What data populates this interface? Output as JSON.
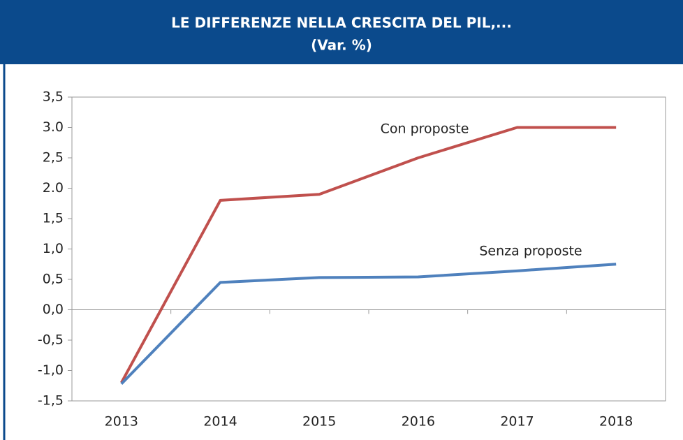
{
  "chart_data": {
    "type": "line",
    "title": "LE DIFFERENZE NELLA CRESCITA DEL PIL,...",
    "subtitle": "(Var. %)",
    "categories": [
      "2013",
      "2014",
      "2015",
      "2016",
      "2017",
      "2018"
    ],
    "series": [
      {
        "name": "Con proposte",
        "color": "#c0504d",
        "values": [
          -1.2,
          1.8,
          1.9,
          2.5,
          3.0,
          3.0
        ]
      },
      {
        "name": "Senza proposte",
        "color": "#4f81bd",
        "values": [
          -1.22,
          0.45,
          0.53,
          0.54,
          0.64,
          0.75
        ]
      }
    ],
    "ylim": [
      -1.5,
      3.5
    ],
    "yticks": [
      {
        "value": 3.5,
        "label": "3,5"
      },
      {
        "value": 3.0,
        "label": "3.0"
      },
      {
        "value": 2.5,
        "label": "2,5"
      },
      {
        "value": 2.0,
        "label": "2.0"
      },
      {
        "value": 1.5,
        "label": "1,5"
      },
      {
        "value": 1.0,
        "label": "1,0"
      },
      {
        "value": 0.5,
        "label": "0,5"
      },
      {
        "value": 0.0,
        "label": "0,0"
      },
      {
        "value": -0.5,
        "label": "-0,5"
      },
      {
        "value": -1.0,
        "label": "-1,0"
      },
      {
        "value": -1.5,
        "label": "-1,5"
      }
    ]
  }
}
